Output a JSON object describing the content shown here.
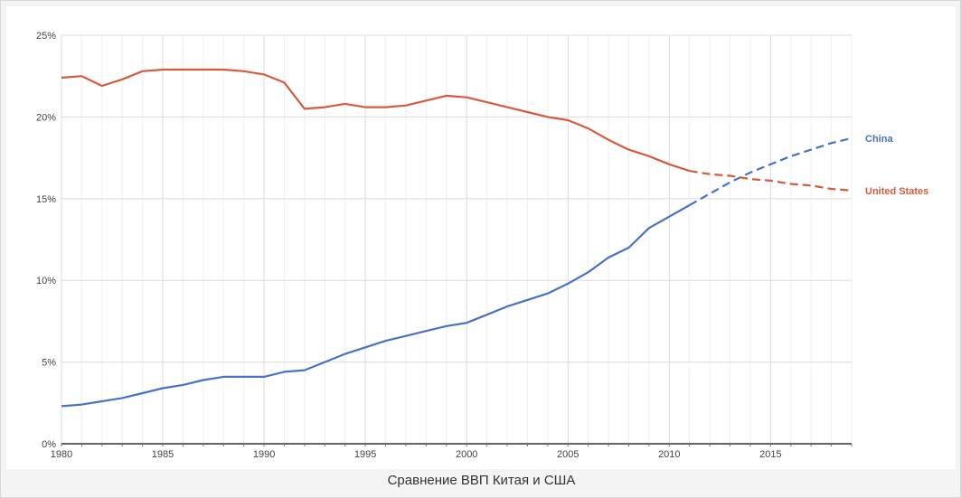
{
  "caption": "Сравнение ВВП Китая и США",
  "chart_data": {
    "type": "line",
    "xlim": [
      1980,
      2019
    ],
    "ylim": [
      0,
      25
    ],
    "x_ticks": [
      1980,
      1985,
      1990,
      1995,
      2000,
      2005,
      2010,
      2015
    ],
    "x_tick_labels": [
      "1980",
      "1985",
      "1990",
      "1995",
      "2000",
      "2005",
      "2010",
      "2015"
    ],
    "y_ticks": [
      0,
      5,
      10,
      15,
      20,
      25
    ],
    "y_tick_labels": [
      "0%",
      "5%",
      "10%",
      "15%",
      "20%",
      "25%"
    ],
    "grid": true,
    "projection_start": 2011,
    "series": [
      {
        "name": "China",
        "color": "#4a72c4",
        "x": [
          1980,
          1981,
          1982,
          1983,
          1984,
          1985,
          1986,
          1987,
          1988,
          1989,
          1990,
          1991,
          1992,
          1993,
          1994,
          1995,
          1996,
          1997,
          1998,
          1999,
          2000,
          2001,
          2002,
          2003,
          2004,
          2005,
          2006,
          2007,
          2008,
          2009,
          2010,
          2011,
          2012,
          2013,
          2014,
          2015,
          2016,
          2017,
          2018,
          2019
        ],
        "values": [
          2.3,
          2.4,
          2.6,
          2.8,
          3.1,
          3.4,
          3.6,
          3.9,
          4.1,
          4.1,
          4.1,
          4.4,
          4.5,
          5.0,
          5.5,
          5.9,
          6.3,
          6.6,
          6.9,
          7.2,
          7.4,
          7.9,
          8.4,
          8.8,
          9.2,
          9.8,
          10.5,
          11.4,
          12.0,
          13.2,
          13.9,
          14.6,
          15.3,
          16.0,
          16.6,
          17.1,
          17.6,
          18.0,
          18.4,
          18.7
        ]
      },
      {
        "name": "United States",
        "color": "#d55b3e",
        "x": [
          1980,
          1981,
          1982,
          1983,
          1984,
          1985,
          1986,
          1987,
          1988,
          1989,
          1990,
          1991,
          1992,
          1993,
          1994,
          1995,
          1996,
          1997,
          1998,
          1999,
          2000,
          2001,
          2002,
          2003,
          2004,
          2005,
          2006,
          2007,
          2008,
          2009,
          2010,
          2011,
          2012,
          2013,
          2014,
          2015,
          2016,
          2017,
          2018,
          2019
        ],
        "values": [
          22.4,
          22.5,
          21.9,
          22.3,
          22.8,
          22.9,
          22.9,
          22.9,
          22.9,
          22.8,
          22.6,
          22.1,
          20.5,
          20.6,
          20.8,
          20.6,
          20.6,
          20.7,
          21.0,
          21.3,
          21.2,
          20.9,
          20.6,
          20.3,
          20.0,
          19.8,
          19.3,
          18.6,
          18.0,
          17.6,
          17.1,
          16.7,
          16.5,
          16.4,
          16.2,
          16.1,
          15.9,
          15.8,
          15.6,
          15.5
        ]
      }
    ]
  }
}
